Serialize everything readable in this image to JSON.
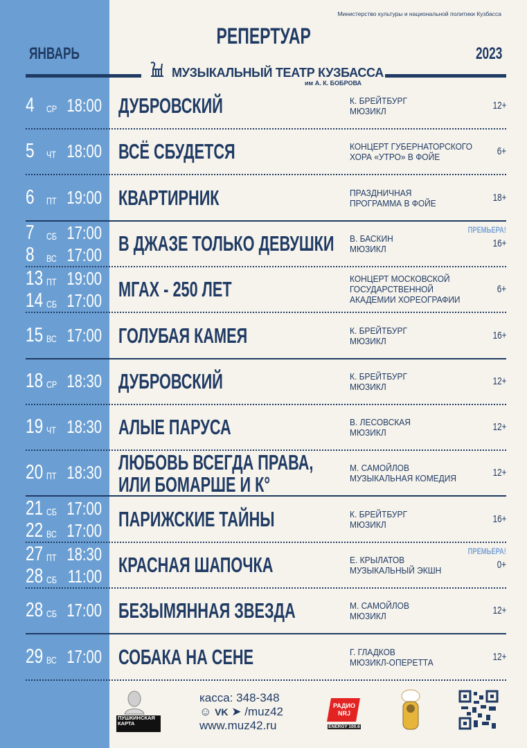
{
  "header": {
    "ministry": "Министерство культуры и национальной политики Кузбасса",
    "title": "РЕПЕРТУАР",
    "month": "ЯНВАРЬ",
    "year": "2023",
    "theatre": "МУЗЫКАЛЬНЫЙ ТЕАТР КУЗБАССА",
    "theatre_sub": "им А. К. БОБРОВА"
  },
  "colors": {
    "navy": "#1f3a63",
    "sidebar": "#6b9fd3",
    "background": "#f6f3ec",
    "premiere": "#7aa4d6"
  },
  "events": [
    {
      "dates": [
        {
          "day": "4",
          "dow": "СР",
          "time": "18:00"
        }
      ],
      "title": [
        "ДУБРОВСКИЙ"
      ],
      "info": [
        "К. БРЕЙТБУРГ",
        "МЮЗИКЛ"
      ],
      "age": "12+",
      "premiere": "",
      "divider": "dotted"
    },
    {
      "dates": [
        {
          "day": "5",
          "dow": "ЧТ",
          "time": "18:00"
        }
      ],
      "title": [
        "ВСЁ СБУДЕТСЯ"
      ],
      "info": [
        "КОНЦЕРТ ГУБЕРНАТОРСКОГО",
        "ХОРА «УТРО» В ФОЙЕ"
      ],
      "age": "6+",
      "premiere": "",
      "divider": "dotted"
    },
    {
      "dates": [
        {
          "day": "6",
          "dow": "ПТ",
          "time": "19:00"
        }
      ],
      "title": [
        "КВАРТИРНИК"
      ],
      "info": [
        "ПРАЗДНИЧНАЯ",
        "ПРОГРАММА В ФОЙЕ"
      ],
      "age": "18+",
      "premiere": "",
      "divider": "solid"
    },
    {
      "dates": [
        {
          "day": "7",
          "dow": "СБ",
          "time": "17:00"
        },
        {
          "day": "8",
          "dow": "ВС",
          "time": "17:00"
        }
      ],
      "title": [
        "В ДЖАЗЕ ТОЛЬКО ДЕВУШКИ"
      ],
      "info": [
        "В. БАСКИН",
        "МЮЗИКЛ"
      ],
      "age": "16+",
      "premiere": "ПРЕМЬЕРА!",
      "divider": "dotted"
    },
    {
      "dates": [
        {
          "day": "13",
          "dow": "ПТ",
          "time": "19:00"
        },
        {
          "day": "14",
          "dow": "СБ",
          "time": "17:00"
        }
      ],
      "title": [
        "МГАХ - 250 ЛЕТ"
      ],
      "info": [
        "КОНЦЕРТ МОСКОВСКОЙ",
        "ГОСУДАРСТВЕННОЙ",
        "АКАДЕМИИ ХОРЕОГРАФИИ"
      ],
      "age": "6+",
      "premiere": "",
      "divider": "dotted"
    },
    {
      "dates": [
        {
          "day": "15",
          "dow": "ВС",
          "time": "17:00"
        }
      ],
      "title": [
        "ГОЛУБАЯ КАМЕЯ"
      ],
      "info": [
        "К. БРЕЙТБУРГ",
        "МЮЗИКЛ"
      ],
      "age": "16+",
      "premiere": "",
      "divider": "solid"
    },
    {
      "dates": [
        {
          "day": "18",
          "dow": "СР",
          "time": "18:30"
        }
      ],
      "title": [
        "ДУБРОВСКИЙ"
      ],
      "info": [
        "К. БРЕЙТБУРГ",
        "МЮЗИКЛ"
      ],
      "age": "12+",
      "premiere": "",
      "divider": "dotted"
    },
    {
      "dates": [
        {
          "day": "19",
          "dow": "ЧТ",
          "time": "18:30"
        }
      ],
      "title": [
        "АЛЫЕ ПАРУСА"
      ],
      "info": [
        "В. ЛЕСОВСКАЯ",
        "МЮЗИКЛ"
      ],
      "age": "12+",
      "premiere": "",
      "divider": "dotted"
    },
    {
      "dates": [
        {
          "day": "20",
          "dow": "ПТ",
          "time": "18:30"
        }
      ],
      "title": [
        "ЛЮБОВЬ ВСЕГДА ПРАВА,",
        "ИЛИ БОМАРШЕ И К°"
      ],
      "info": [
        "М. САМОЙЛОВ",
        "МУЗЫКАЛЬНАЯ КОМЕДИЯ"
      ],
      "age": "12+",
      "premiere": "",
      "divider": "solid"
    },
    {
      "dates": [
        {
          "day": "21",
          "dow": "СБ",
          "time": "17:00"
        },
        {
          "day": "22",
          "dow": "ВС",
          "time": "17:00"
        }
      ],
      "title": [
        "ПАРИЖСКИЕ ТАЙНЫ"
      ],
      "info": [
        "К. БРЕЙТБУРГ",
        "МЮЗИКЛ"
      ],
      "age": "16+",
      "premiere": "",
      "divider": "dotted"
    },
    {
      "dates": [
        {
          "day": "27",
          "dow": "ПТ",
          "time": "18:30"
        },
        {
          "day": "28",
          "dow": "СБ",
          "time": "11:00"
        }
      ],
      "title": [
        "КРАСНАЯ ШАПОЧКА"
      ],
      "info": [
        "Е. КРЫЛАТОВ",
        "МУЗЫКАЛЬНЫЙ ЭКШН"
      ],
      "age": "0+",
      "premiere": "ПРЕМЬЕРА!",
      "divider": "dotted"
    },
    {
      "dates": [
        {
          "day": "28",
          "dow": "СБ",
          "time": "17:00"
        }
      ],
      "title": [
        "БЕЗЫМЯННАЯ ЗВЕЗДА"
      ],
      "info": [
        "М. САМОЙЛОВ",
        "МЮЗИКЛ"
      ],
      "age": "12+",
      "premiere": "",
      "divider": "solid"
    },
    {
      "dates": [
        {
          "day": "29",
          "dow": "ВС",
          "time": "17:00"
        }
      ],
      "title": [
        "СОБАКА НА СЕНЕ"
      ],
      "info": [
        "Г. ГЛАДКОВ",
        "МЮЗИКЛ-ОПЕРЕТТА"
      ],
      "age": "12+",
      "premiere": "",
      "divider": "dotted"
    }
  ],
  "footer": {
    "box_office": "касса: 348-348",
    "social_handle": "/muz42",
    "website": "www.muz42.ru",
    "pushkin_card": "ПУШКИНСКАЯ КАРТА",
    "radio": "ENERGY 100.6",
    "radio_logo": "РАДИО NRJ",
    "icons": [
      "odnoklassniki-icon",
      "vk-icon",
      "telegram-icon"
    ]
  }
}
